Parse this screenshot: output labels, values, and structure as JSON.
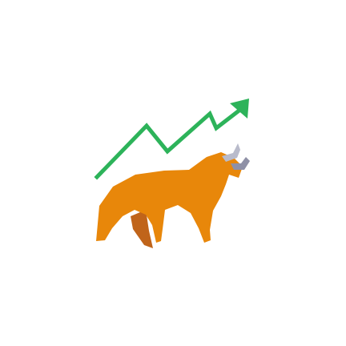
{
  "illustration": {
    "icon": "bull-market-icon",
    "parts": {
      "trend_line": {
        "icon": "uptrend-arrow-icon",
        "color": "#2DB35A"
      },
      "bull_body": {
        "icon": "bull-icon",
        "color": "#E8870A"
      },
      "bull_shadow_leg": {
        "color": "#C0641A"
      },
      "horns": {
        "icon": "horn-icon",
        "color": "#A4A6BA"
      }
    }
  }
}
